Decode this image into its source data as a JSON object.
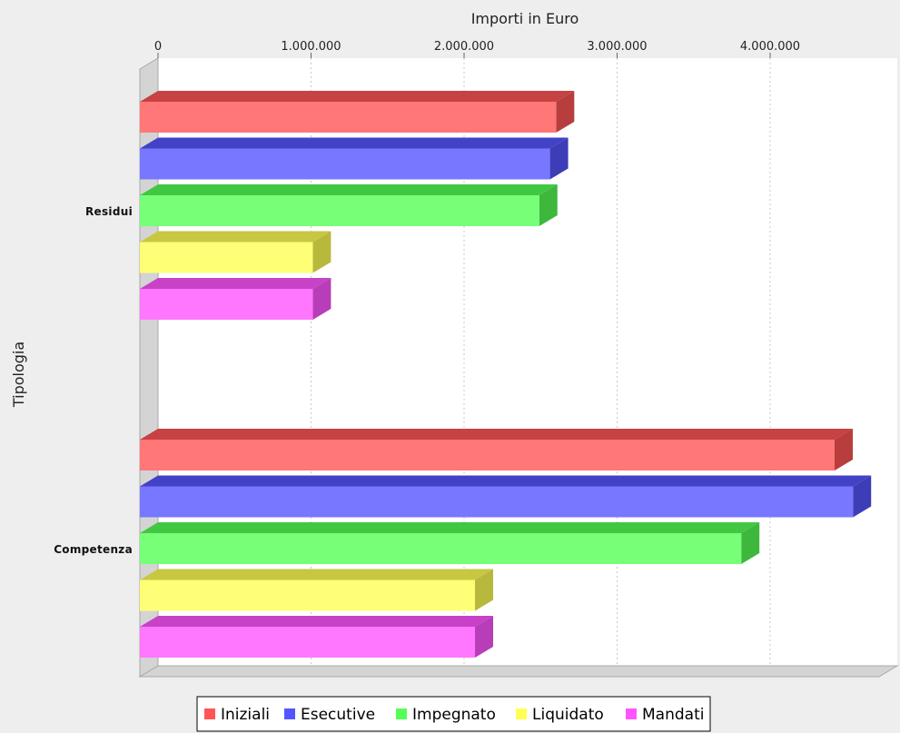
{
  "chart_data": {
    "type": "bar",
    "orientation": "horizontal",
    "three_d": true,
    "xlabel": "Importi in Euro",
    "ylabel": "Tipologia",
    "xlim": [
      0,
      4800000
    ],
    "x_ticks": [
      0,
      1000000,
      2000000,
      3000000,
      4000000
    ],
    "x_tick_labels": [
      "0",
      "1.000.000",
      "2.000.000",
      "3.000.000",
      "4.000.000"
    ],
    "grid": true,
    "legend_position": "bottom",
    "categories": [
      "Residui",
      "Competenza"
    ],
    "series": [
      {
        "name": "Iniziali",
        "color": "#ff5555",
        "values": [
          2720000,
          4540000
        ]
      },
      {
        "name": "Esecutive",
        "color": "#5555ff",
        "values": [
          2680000,
          4660000
        ]
      },
      {
        "name": "Impegnato",
        "color": "#55ff55",
        "values": [
          2610000,
          3930000
        ]
      },
      {
        "name": "Liquidato",
        "color": "#ffff55",
        "values": [
          1130000,
          2190000
        ]
      },
      {
        "name": "Mandati",
        "color": "#ff55ff",
        "values": [
          1130000,
          2190000
        ]
      }
    ]
  }
}
